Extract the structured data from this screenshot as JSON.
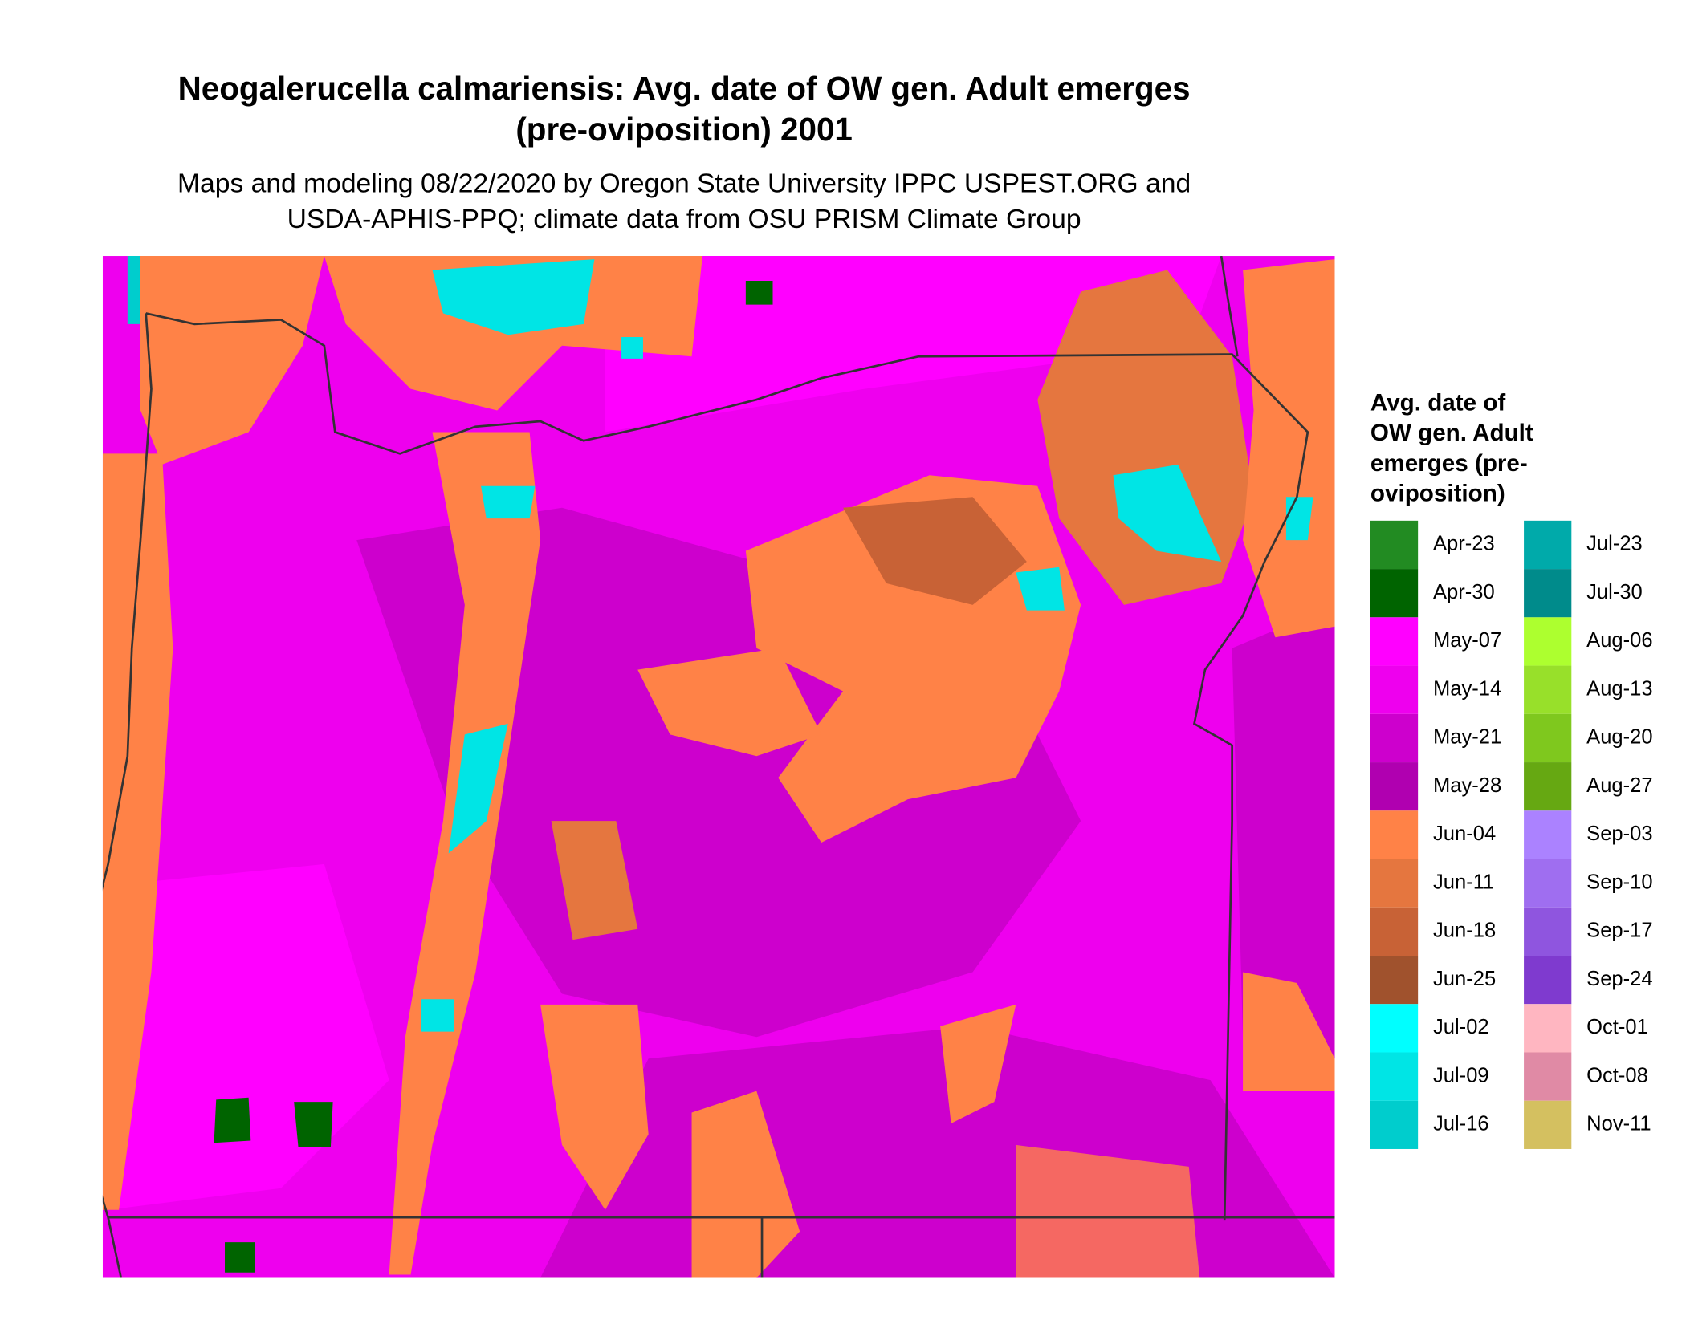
{
  "header": {
    "title": [
      "Neogalerucella calmariensis: Avg. date of OW gen. Adult emerges",
      "(pre-oviposition) 2001"
    ],
    "subtitle": [
      "Maps and modeling 08/22/2020 by Oregon State University IPPC USPEST.ORG and",
      "USDA-APHIS-PPQ; climate data from OSU PRISM Climate Group"
    ]
  },
  "legend": {
    "title": [
      "Avg. date of",
      "OW gen. Adult",
      "emerges (pre-",
      "oviposition)"
    ],
    "items": [
      {
        "label": "Apr-23",
        "color": "#228B22"
      },
      {
        "label": "Apr-30",
        "color": "#006400"
      },
      {
        "label": "May-07",
        "color": "#FF00FF"
      },
      {
        "label": "May-14",
        "color": "#EE00EE"
      },
      {
        "label": "May-21",
        "color": "#CD00CD"
      },
      {
        "label": "May-28",
        "color": "#B000B0"
      },
      {
        "label": "Jun-04",
        "color": "#FF8247"
      },
      {
        "label": "Jun-11",
        "color": "#E5763F"
      },
      {
        "label": "Jun-18",
        "color": "#C86236"
      },
      {
        "label": "Jun-25",
        "color": "#A0522D"
      },
      {
        "label": "Jul-02",
        "color": "#00FFFF"
      },
      {
        "label": "Jul-09",
        "color": "#00E5E5"
      },
      {
        "label": "Jul-16",
        "color": "#00CDCD"
      },
      {
        "label": "Jul-23",
        "color": "#00AAAA"
      },
      {
        "label": "Jul-30",
        "color": "#008B8B"
      },
      {
        "label": "Aug-06",
        "color": "#ADFF2F"
      },
      {
        "label": "Aug-13",
        "color": "#98E02A"
      },
      {
        "label": "Aug-20",
        "color": "#7FC81E"
      },
      {
        "label": "Aug-27",
        "color": "#66A812"
      },
      {
        "label": "Sep-03",
        "color": "#AB82FF"
      },
      {
        "label": "Sep-10",
        "color": "#9F6EF0"
      },
      {
        "label": "Sep-17",
        "color": "#8F55DF"
      },
      {
        "label": "Sep-24",
        "color": "#7F3ACF"
      },
      {
        "label": "Oct-01",
        "color": "#FFB6C1"
      },
      {
        "label": "Oct-08",
        "color": "#E08AA5"
      },
      {
        "label": "Nov-11",
        "color": "#D4C060"
      }
    ]
  }
}
